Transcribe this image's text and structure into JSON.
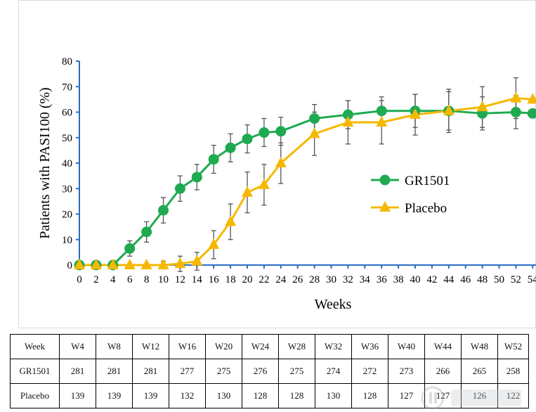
{
  "colors": {
    "gr1501": "#1faa50",
    "placebo": "#f5b800",
    "axis": "#2b6cc4",
    "error": "#555555"
  },
  "chart_data": {
    "type": "line",
    "xlabel": "Weeks",
    "ylabel": "Patients with PASI100 (%)",
    "xlim": [
      0,
      54
    ],
    "ylim": [
      0,
      80
    ],
    "xticks": [
      "0",
      "2",
      "4",
      "6",
      "8",
      "10",
      "12",
      "14",
      "16",
      "18",
      "20",
      "22",
      "24",
      "26",
      "28",
      "30",
      "32",
      "34",
      "36",
      "38",
      "40",
      "42",
      "44",
      "46",
      "48",
      "50",
      "52",
      "54"
    ],
    "yticks": [
      "0",
      "10",
      "20",
      "30",
      "40",
      "50",
      "60",
      "70",
      "80"
    ],
    "legend_position": "center-right",
    "series": [
      {
        "name": "GR1501",
        "marker": "circle",
        "x": [
          0,
          2,
          4,
          6,
          8,
          10,
          12,
          14,
          16,
          18,
          20,
          22,
          24,
          28,
          32,
          36,
          40,
          44,
          48,
          52,
          54
        ],
        "values": [
          0,
          0,
          0,
          6.5,
          13,
          21.5,
          30,
          34.5,
          41.5,
          46,
          49.5,
          52,
          52.5,
          57.5,
          59,
          60.5,
          60.5,
          60.5,
          59.5,
          60,
          59.5
        ],
        "err": [
          0,
          0,
          0,
          3,
          4,
          5,
          5,
          5,
          5.5,
          5.5,
          5.5,
          5.5,
          5.5,
          5.5,
          5.5,
          5.5,
          6.5,
          7.5,
          6.5,
          6.5,
          0
        ]
      },
      {
        "name": "Placebo",
        "marker": "triangle",
        "x": [
          0,
          2,
          4,
          6,
          8,
          10,
          12,
          14,
          16,
          18,
          20,
          22,
          24,
          28,
          32,
          36,
          40,
          44,
          48,
          52,
          54
        ],
        "values": [
          0,
          0,
          0,
          0,
          0,
          0,
          0.5,
          1.5,
          8,
          17,
          28.5,
          31.5,
          40,
          51.5,
          56,
          56,
          59,
          60.5,
          62,
          65.5,
          65
        ],
        "err": [
          0,
          0,
          0,
          0,
          0,
          1.5,
          3,
          3.5,
          5.5,
          7,
          8,
          8,
          8,
          8.5,
          8.5,
          8.5,
          8,
          8.5,
          8,
          8,
          0
        ]
      }
    ]
  },
  "table": {
    "header": [
      "Week",
      "W4",
      "W8",
      "W12",
      "W16",
      "W20",
      "W24",
      "W28",
      "W32",
      "W36",
      "W40",
      "W44",
      "W48",
      "W52"
    ],
    "rows": [
      [
        "GR1501",
        "281",
        "281",
        "281",
        "277",
        "275",
        "276",
        "275",
        "274",
        "272",
        "273",
        "266",
        "265",
        "258"
      ],
      [
        "Placebo",
        "139",
        "139",
        "139",
        "132",
        "130",
        "128",
        "128",
        "130",
        "128",
        "127",
        "127",
        "126",
        "122"
      ]
    ]
  }
}
